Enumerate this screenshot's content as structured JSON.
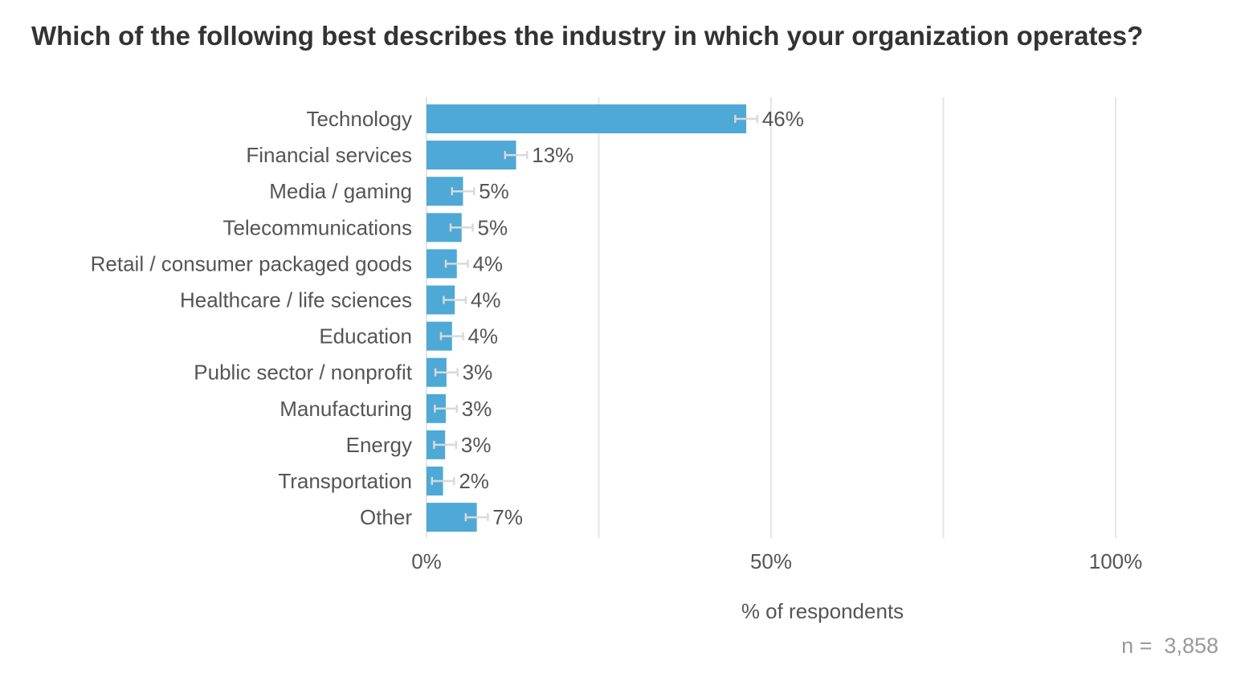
{
  "title": "Which of the following best describes the industry in which your organization operates?",
  "chart_data": {
    "type": "bar",
    "orientation": "horizontal",
    "title": "Which of the following best describes the industry in which your organization operates?",
    "categories": [
      "Technology",
      "Financial services",
      "Media / gaming",
      "Telecommunications",
      "Retail / consumer packaged goods",
      "Healthcare / life sciences",
      "Education",
      "Public sector / nonprofit",
      "Manufacturing",
      "Energy",
      "Transportation",
      "Other"
    ],
    "values": [
      46.4,
      13.0,
      5.3,
      5.1,
      4.4,
      4.1,
      3.7,
      2.9,
      2.8,
      2.7,
      2.4,
      7.3
    ],
    "data_labels": [
      "46%",
      "13%",
      "5%",
      "5%",
      "4%",
      "4%",
      "4%",
      "3%",
      "3%",
      "3%",
      "2%",
      "7%"
    ],
    "error_margin": 1.6,
    "xlim": [
      0,
      100
    ],
    "x_ticks": [
      0,
      50,
      100
    ],
    "x_tick_labels": [
      "0%",
      "50%",
      "100%"
    ],
    "x_gridlines": [
      0,
      25,
      50,
      75,
      100
    ],
    "xlabel": "% of respondents",
    "ylabel": "",
    "bar_color": "#4ea9d6",
    "error_bar_color": "#d9d9d9",
    "grid_color": "#e6e6e6",
    "label_color": "#555555"
  },
  "footnote": {
    "prefix": "n = ",
    "value": "3,858"
  }
}
